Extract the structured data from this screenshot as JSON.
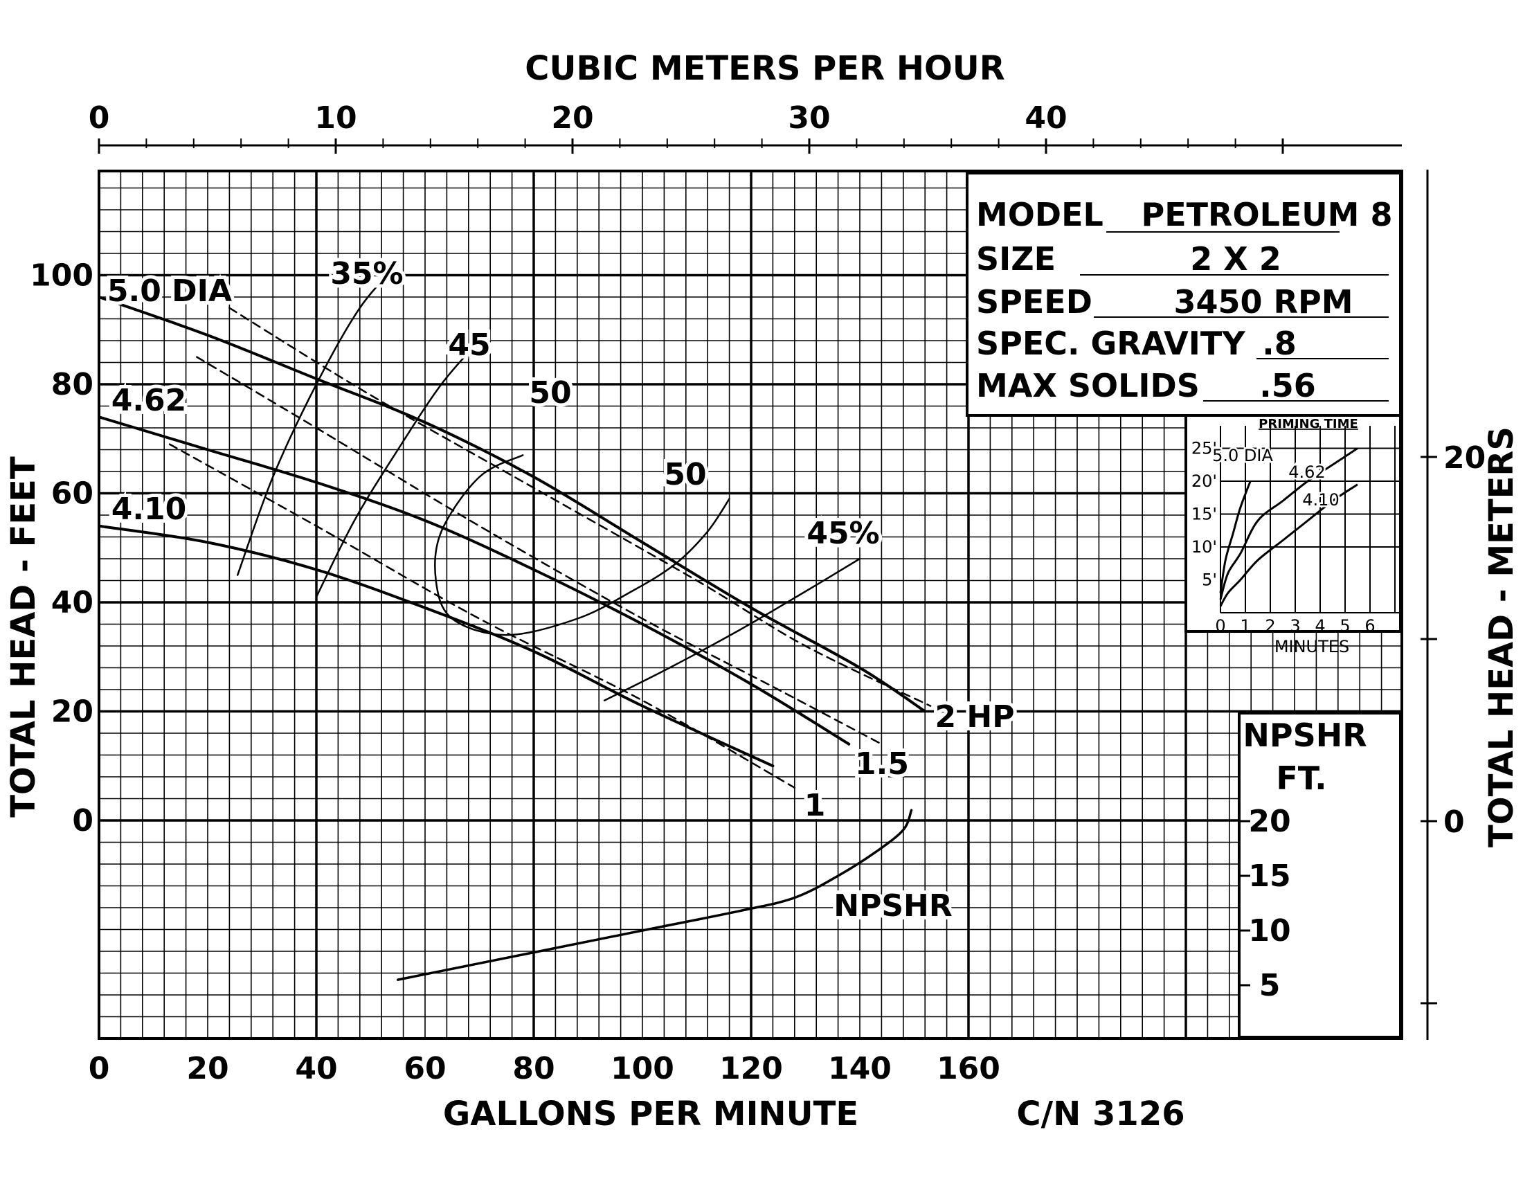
{
  "chart_data": {
    "type": "line",
    "x_axis": {
      "label": "GALLONS PER MINUTE",
      "ticks": [
        0,
        20,
        40,
        60,
        80,
        100,
        120,
        140,
        160
      ],
      "range": [
        0,
        240
      ]
    },
    "x2_axis": {
      "label": "CUBIC METERS PER HOUR",
      "ticks": [
        0,
        10,
        20,
        30,
        40
      ]
    },
    "y_axis": {
      "label": "TOTAL HEAD - FEET",
      "ticks": [
        0,
        20,
        40,
        60,
        80,
        100
      ],
      "range": [
        -40,
        120
      ]
    },
    "y2_axis": {
      "label": "TOTAL HEAD - METERS",
      "ticks": [
        0,
        20
      ]
    },
    "npshr_axis": {
      "label_line1": "NPSHR",
      "label_line2": "FT.",
      "ticks": [
        20,
        15,
        10,
        5
      ]
    },
    "grid": true,
    "footer_code": "C/N 3126",
    "series": [
      {
        "name": "5.0 DIA",
        "kind": "head",
        "x": [
          0,
          20,
          40,
          60,
          80,
          100,
          120,
          140,
          152
        ],
        "y": [
          96,
          89,
          81,
          73,
          63,
          51,
          39,
          28,
          20
        ]
      },
      {
        "name": "4.62",
        "kind": "head",
        "x": [
          0,
          20,
          40,
          60,
          80,
          100,
          120,
          138
        ],
        "y": [
          74,
          68,
          62,
          55,
          46,
          36,
          25,
          14
        ]
      },
      {
        "name": "4.10",
        "kind": "head",
        "x": [
          0,
          20,
          40,
          60,
          80,
          100,
          124
        ],
        "y": [
          54,
          51,
          46,
          39,
          31,
          21,
          10
        ]
      },
      {
        "name": "2 HP",
        "kind": "hp",
        "x": [
          24,
          50,
          80,
          110,
          130,
          153
        ],
        "y": [
          94,
          78,
          61,
          44,
          32,
          21
        ]
      },
      {
        "name": "1.5",
        "kind": "hp",
        "x": [
          18,
          40,
          70,
          100,
          125,
          144
        ],
        "y": [
          85,
          72,
          54,
          37,
          24,
          14
        ]
      },
      {
        "name": "1",
        "kind": "hp",
        "x": [
          13,
          40,
          70,
          100,
          128
        ],
        "y": [
          69,
          54,
          37,
          22,
          6
        ]
      },
      {
        "name": "35%",
        "kind": "efficiency",
        "x": [
          25.5,
          32,
          40,
          48,
          55
        ],
        "y": [
          45,
          63,
          80,
          94,
          102
        ]
      },
      {
        "name": "45",
        "kind": "efficiency",
        "x": [
          40,
          47,
          55,
          63,
          70
        ],
        "y": [
          41,
          55,
          68,
          80,
          88
        ]
      },
      {
        "name": "50",
        "kind": "efficiency",
        "x": [
          78,
          70,
          63,
          62,
          65,
          75,
          88,
          98,
          106,
          112,
          116
        ],
        "y": [
          67,
          63,
          53,
          44,
          37,
          34,
          37,
          42,
          47,
          53,
          59
        ]
      },
      {
        "name": "45%",
        "kind": "efficiency",
        "x": [
          93,
          105,
          118,
          130,
          140
        ],
        "y": [
          22,
          28,
          35,
          42,
          48
        ]
      },
      {
        "name": "NPSHR",
        "kind": "npshr",
        "x": [
          55,
          80,
          100,
          118,
          128,
          136,
          143,
          148,
          149.5
        ],
        "y": [
          5.5,
          8,
          10,
          11.8,
          13,
          15,
          17.2,
          19.2,
          21
        ]
      }
    ],
    "priming_inset": {
      "title": "PRIMING TIME",
      "x_label": "MINUTES",
      "x_ticks": [
        "0",
        "1",
        "2",
        "3",
        "4",
        "5",
        "6"
      ],
      "y_ticks": [
        "25'",
        "20'",
        "15'",
        "10'",
        "5'"
      ],
      "series": [
        {
          "name": "5.0 DIA",
          "x": [
            0,
            0.2,
            0.5,
            0.8,
            1.2
          ],
          "y": [
            3,
            8,
            12,
            16,
            20
          ]
        },
        {
          "name": "4.62",
          "x": [
            0,
            0.3,
            0.8,
            1.5,
            2.5,
            3.5,
            4.5,
            5.5
          ],
          "y": [
            2,
            6,
            9,
            14,
            17,
            20,
            22.5,
            25
          ]
        },
        {
          "name": "4.10",
          "x": [
            0,
            0.3,
            0.8,
            1.5,
            2.5,
            3.5,
            4.5,
            5.5
          ],
          "y": [
            1,
            3,
            5,
            8,
            11,
            14,
            17,
            19.5
          ]
        }
      ]
    }
  },
  "spec_table": {
    "rows": [
      {
        "label": "MODEL",
        "value": "PETROLEUM 8"
      },
      {
        "label": "SIZE",
        "value": "2 X 2"
      },
      {
        "label": "SPEED",
        "value": "3450 RPM"
      },
      {
        "label": "SPEC. GRAVITY",
        "value": ".8"
      },
      {
        "label": "MAX SOLIDS",
        "value": ".56"
      }
    ]
  }
}
